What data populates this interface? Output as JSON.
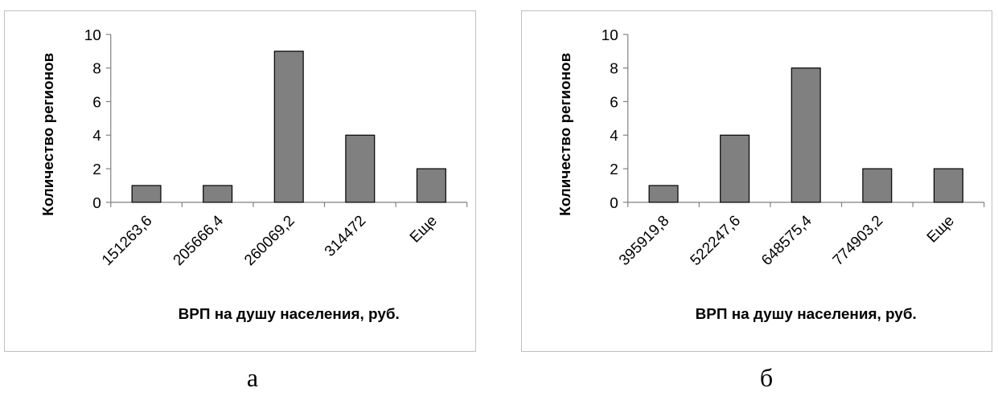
{
  "chart_data": [
    {
      "type": "bar",
      "categories": [
        "151263,6",
        "205666,4",
        "260069,2",
        "314472",
        "Еще"
      ],
      "values": [
        1,
        1,
        9,
        4,
        2
      ],
      "xlabel": "ВРП на душу населения, руб.",
      "ylabel": "Количество регионов",
      "ylim": [
        0,
        10
      ],
      "yticks": [
        "0",
        "2",
        "4",
        "6",
        "8",
        "10"
      ],
      "grid": false,
      "bar_color": "#808080",
      "caption": "а"
    },
    {
      "type": "bar",
      "categories": [
        "395919,8",
        "522247,6",
        "648575,4",
        "774903,2",
        "Еще"
      ],
      "values": [
        1,
        4,
        8,
        2,
        2
      ],
      "xlabel": "ВРП на душу населения, руб.",
      "ylabel": "Количество регионов",
      "ylim": [
        0,
        10
      ],
      "yticks": [
        "0",
        "2",
        "4",
        "6",
        "8",
        "10"
      ],
      "grid": false,
      "bar_color": "#808080",
      "caption": "б"
    }
  ]
}
